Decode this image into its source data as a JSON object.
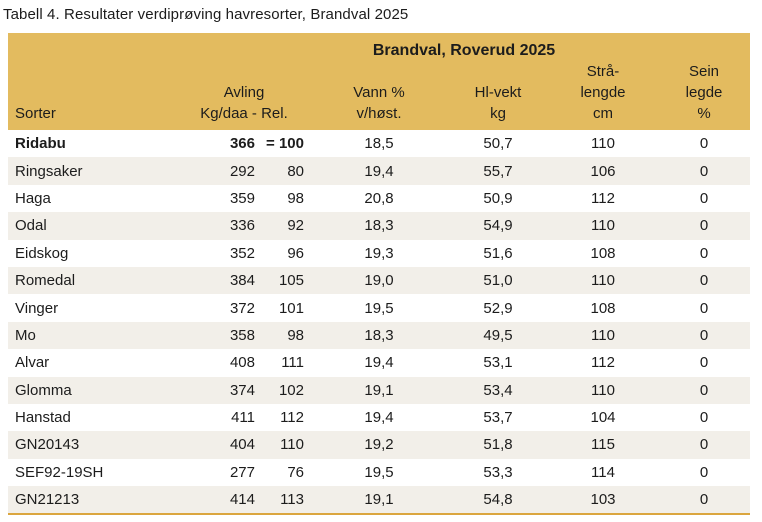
{
  "caption": "Tabell 4. Resultater verdiprøving havresorter, Brandval 2025",
  "table": {
    "group_header": "Brandval, Roverud 2025",
    "columns": {
      "sorter": "Sorter",
      "avling_group": [
        "Avling",
        "Kg/daa - Rel."
      ],
      "vann": [
        "Vann %",
        "v/høst."
      ],
      "hlvekt": [
        "Hl-vekt",
        "kg"
      ],
      "straalengde": [
        "Strå-",
        "lengde",
        "cm"
      ],
      "sein_legde": [
        "Sein",
        "legde",
        "%"
      ]
    },
    "rows": [
      {
        "sorter": "Ridabu",
        "kgdaa": "366",
        "rel": "= 100",
        "vann": "18,5",
        "hl": "50,7",
        "straa": "110",
        "sein": "0",
        "bold": true
      },
      {
        "sorter": "Ringsaker",
        "kgdaa": "292",
        "rel": "80",
        "vann": "19,4",
        "hl": "55,7",
        "straa": "106",
        "sein": "0"
      },
      {
        "sorter": "Haga",
        "kgdaa": "359",
        "rel": "98",
        "vann": "20,8",
        "hl": "50,9",
        "straa": "112",
        "sein": "0"
      },
      {
        "sorter": "Odal",
        "kgdaa": "336",
        "rel": "92",
        "vann": "18,3",
        "hl": "54,9",
        "straa": "110",
        "sein": "0"
      },
      {
        "sorter": "Eidskog",
        "kgdaa": "352",
        "rel": "96",
        "vann": "19,3",
        "hl": "51,6",
        "straa": "108",
        "sein": "0"
      },
      {
        "sorter": "Romedal",
        "kgdaa": "384",
        "rel": "105",
        "vann": "19,0",
        "hl": "51,0",
        "straa": "110",
        "sein": "0"
      },
      {
        "sorter": "Vinger",
        "kgdaa": "372",
        "rel": "101",
        "vann": "19,5",
        "hl": "52,9",
        "straa": "108",
        "sein": "0"
      },
      {
        "sorter": "Mo",
        "kgdaa": "358",
        "rel": "98",
        "vann": "18,3",
        "hl": "49,5",
        "straa": "110",
        "sein": "0"
      },
      {
        "sorter": "Alvar",
        "kgdaa": "408",
        "rel": "111",
        "vann": "19,4",
        "hl": "53,1",
        "straa": "112",
        "sein": "0"
      },
      {
        "sorter": "Glomma",
        "kgdaa": "374",
        "rel": "102",
        "vann": "19,1",
        "hl": "53,4",
        "straa": "110",
        "sein": "0"
      },
      {
        "sorter": "Hanstad",
        "kgdaa": "411",
        "rel": "112",
        "vann": "19,4",
        "hl": "53,7",
        "straa": "104",
        "sein": "0"
      },
      {
        "sorter": "GN20143",
        "kgdaa": "404",
        "rel": "110",
        "vann": "19,2",
        "hl": "51,8",
        "straa": "115",
        "sein": "0"
      },
      {
        "sorter": "SEF92-19SH",
        "kgdaa": "277",
        "rel": "76",
        "vann": "19,5",
        "hl": "53,3",
        "straa": "114",
        "sein": "0"
      },
      {
        "sorter": "GN21213",
        "kgdaa": "414",
        "rel": "113",
        "vann": "19,1",
        "hl": "54,8",
        "straa": "103",
        "sein": "0"
      }
    ],
    "colors": {
      "header_bg": "#e3bb5f",
      "row_alt_bg": "#f2efe9",
      "bottom_line": "#dba63f",
      "text": "#1c1c1c"
    }
  }
}
